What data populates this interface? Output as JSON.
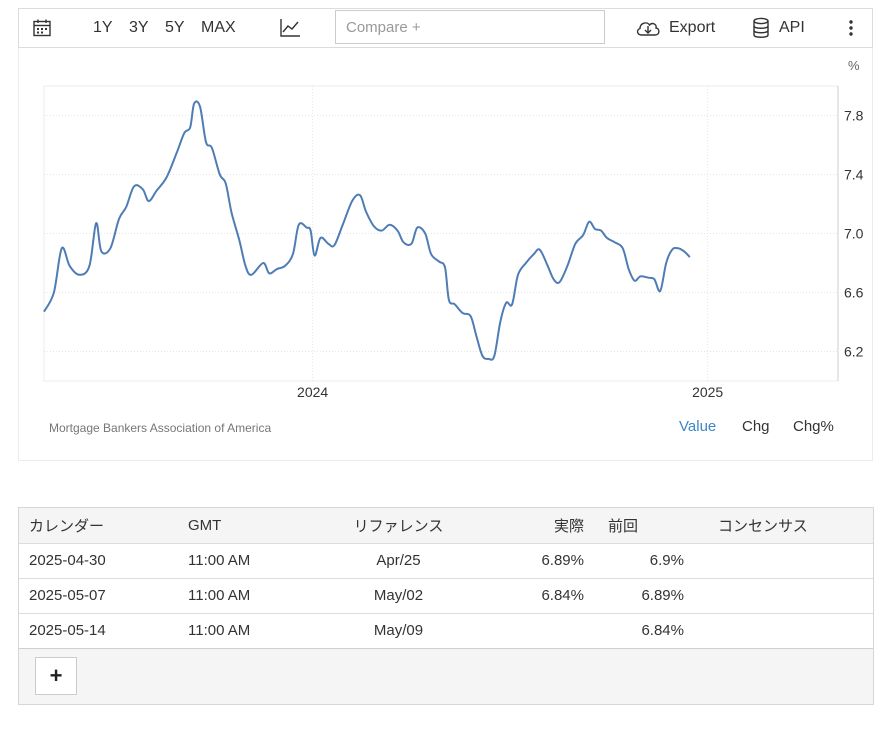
{
  "toolbar": {
    "ranges": [
      "1Y",
      "3Y",
      "5Y",
      "MAX"
    ],
    "compare_placeholder": "Compare +",
    "export_label": "Export",
    "api_label": "API"
  },
  "chart_data": {
    "type": "line",
    "unit_label": "%",
    "xlabel": "",
    "ylabel": "",
    "ylim": [
      6.0,
      8.0
    ],
    "yticks": [
      6.2,
      6.6,
      7.0,
      7.4,
      7.8
    ],
    "xticks": [
      {
        "label": "2024",
        "x": 0.4
      },
      {
        "label": "2025",
        "x": 1.4
      }
    ],
    "xlim": [
      -0.28,
      1.73
    ],
    "grid": true,
    "color": "#4e7cb4",
    "series": [
      {
        "name": "",
        "points": [
          [
            -0.28,
            6.47
          ],
          [
            -0.255,
            6.6
          ],
          [
            -0.235,
            6.9
          ],
          [
            -0.215,
            6.78
          ],
          [
            -0.19,
            6.72
          ],
          [
            -0.165,
            6.78
          ],
          [
            -0.148,
            7.07
          ],
          [
            -0.135,
            6.88
          ],
          [
            -0.112,
            6.9
          ],
          [
            -0.09,
            7.1
          ],
          [
            -0.072,
            7.18
          ],
          [
            -0.052,
            7.32
          ],
          [
            -0.03,
            7.3
          ],
          [
            -0.015,
            7.22
          ],
          [
            0.005,
            7.29
          ],
          [
            0.03,
            7.38
          ],
          [
            0.055,
            7.54
          ],
          [
            0.075,
            7.68
          ],
          [
            0.09,
            7.72
          ],
          [
            0.1,
            7.88
          ],
          [
            0.115,
            7.86
          ],
          [
            0.13,
            7.62
          ],
          [
            0.145,
            7.58
          ],
          [
            0.165,
            7.4
          ],
          [
            0.18,
            7.34
          ],
          [
            0.195,
            7.14
          ],
          [
            0.215,
            6.95
          ],
          [
            0.23,
            6.78
          ],
          [
            0.245,
            6.72
          ],
          [
            0.275,
            6.8
          ],
          [
            0.29,
            6.73
          ],
          [
            0.31,
            6.76
          ],
          [
            0.33,
            6.78
          ],
          [
            0.35,
            6.86
          ],
          [
            0.365,
            7.06
          ],
          [
            0.385,
            7.04
          ],
          [
            0.395,
            7.02
          ],
          [
            0.405,
            6.85
          ],
          [
            0.42,
            6.97
          ],
          [
            0.44,
            6.93
          ],
          [
            0.455,
            6.92
          ],
          [
            0.475,
            7.05
          ],
          [
            0.5,
            7.22
          ],
          [
            0.52,
            7.26
          ],
          [
            0.535,
            7.15
          ],
          [
            0.555,
            7.05
          ],
          [
            0.575,
            7.02
          ],
          [
            0.595,
            7.06
          ],
          [
            0.615,
            7.02
          ],
          [
            0.63,
            6.94
          ],
          [
            0.65,
            6.93
          ],
          [
            0.665,
            7.04
          ],
          [
            0.685,
            7.0
          ],
          [
            0.7,
            6.86
          ],
          [
            0.72,
            6.81
          ],
          [
            0.735,
            6.77
          ],
          [
            0.745,
            6.55
          ],
          [
            0.76,
            6.52
          ],
          [
            0.78,
            6.46
          ],
          [
            0.8,
            6.44
          ],
          [
            0.815,
            6.3
          ],
          [
            0.83,
            6.17
          ],
          [
            0.845,
            6.15
          ],
          [
            0.86,
            6.17
          ],
          [
            0.875,
            6.4
          ],
          [
            0.89,
            6.53
          ],
          [
            0.905,
            6.52
          ],
          [
            0.92,
            6.72
          ],
          [
            0.94,
            6.8
          ],
          [
            0.96,
            6.86
          ],
          [
            0.975,
            6.89
          ],
          [
            0.995,
            6.78
          ],
          [
            1.01,
            6.69
          ],
          [
            1.025,
            6.67
          ],
          [
            1.045,
            6.78
          ],
          [
            1.065,
            6.93
          ],
          [
            1.085,
            6.99
          ],
          [
            1.1,
            7.08
          ],
          [
            1.115,
            7.03
          ],
          [
            1.13,
            7.02
          ],
          [
            1.145,
            6.97
          ],
          [
            1.165,
            6.94
          ],
          [
            1.185,
            6.9
          ],
          [
            1.2,
            6.76
          ],
          [
            1.215,
            6.68
          ],
          [
            1.23,
            6.71
          ],
          [
            1.25,
            6.7
          ],
          [
            1.265,
            6.69
          ],
          [
            1.28,
            6.61
          ],
          [
            1.295,
            6.8
          ],
          [
            1.31,
            6.89
          ],
          [
            1.325,
            6.9
          ],
          [
            1.34,
            6.88
          ],
          [
            1.355,
            6.84
          ]
        ]
      }
    ]
  },
  "footer": {
    "source": "Mortgage Bankers Association of America",
    "modes": [
      "Value",
      "Chg",
      "Chg%"
    ]
  },
  "table": {
    "headers": [
      "カレンダー",
      "GMT",
      "リファレンス",
      "実際",
      "前回",
      "コンセンサス"
    ],
    "rows": [
      [
        "2025-04-30",
        "11:00 AM",
        "Apr/25",
        "6.89%",
        "6.9%",
        ""
      ],
      [
        "2025-05-07",
        "11:00 AM",
        "May/02",
        "6.84%",
        "6.89%",
        ""
      ],
      [
        "2025-05-14",
        "11:00 AM",
        "May/09",
        "",
        "6.84%",
        ""
      ]
    ],
    "add_label": "+"
  }
}
